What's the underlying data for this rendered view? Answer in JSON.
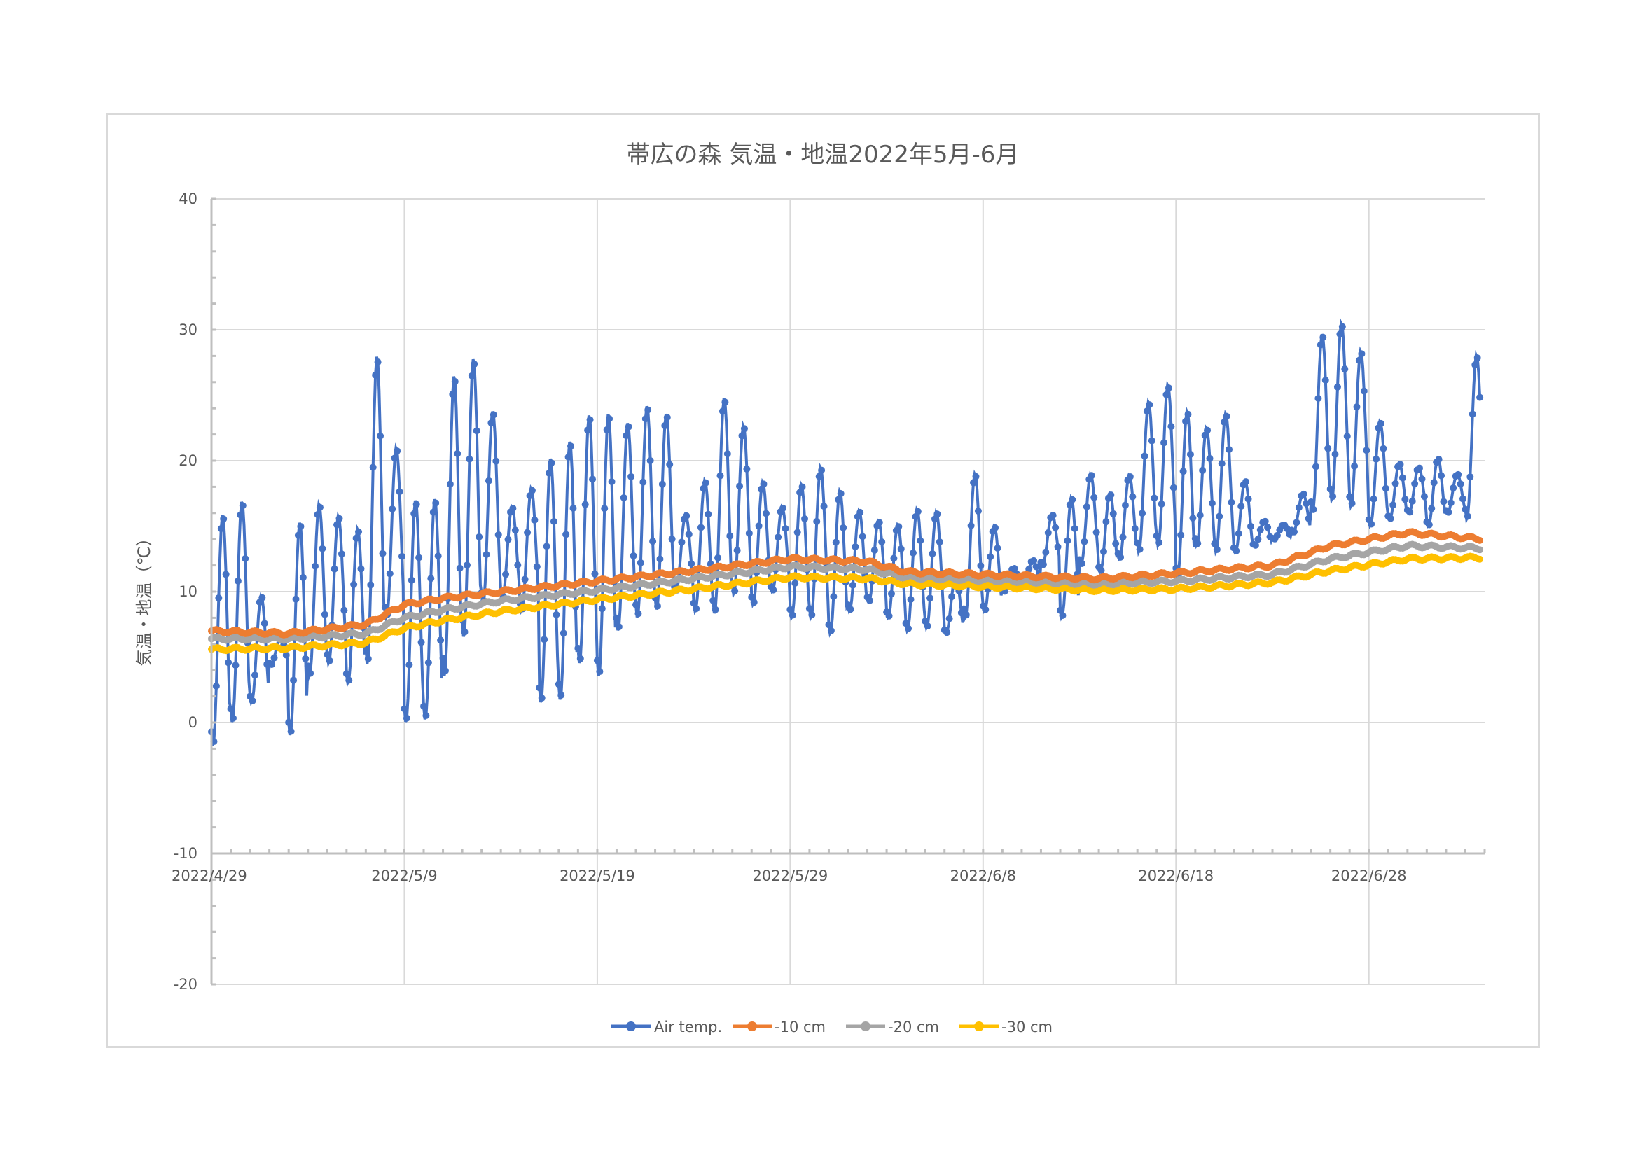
{
  "chart_data": {
    "type": "line",
    "title": "帯広の森 気温・地温2022年5月-6月",
    "ylabel": "気温・地温（℃）",
    "xlabel": "",
    "ylim": [
      -20,
      40
    ],
    "yticks": [
      "40",
      "30",
      "20",
      "10",
      "0",
      "-10",
      "-20"
    ],
    "x_axis_crosses_at": -10,
    "xlim": [
      "2022-04-29",
      "2022-07-04"
    ],
    "xticks": [
      {
        "date": "2022-04-29",
        "label": "2022/4/29"
      },
      {
        "date": "2022-05-09",
        "label": "2022/5/9"
      },
      {
        "date": "2022-05-19",
        "label": "2022/5/19"
      },
      {
        "date": "2022-05-29",
        "label": "2022/5/29"
      },
      {
        "date": "2022-06-08",
        "label": "2022/6/8"
      },
      {
        "date": "2022-06-18",
        "label": "2022/6/18"
      },
      {
        "date": "2022-06-28",
        "label": "2022/6/28"
      }
    ],
    "grid": true,
    "legend_position": "bottom",
    "series": [
      {
        "name": "Air temp.",
        "color": "#4472c4",
        "daily_max": [
          15.9,
          16.9,
          9.7,
          6.5,
          15.3,
          16.7,
          15.8,
          14.8,
          28.0,
          21.0,
          17.0,
          17.1,
          26.5,
          27.8,
          23.8,
          16.5,
          17.9,
          20.2,
          21.5,
          23.5,
          23.6,
          22.9,
          24.2,
          23.6,
          15.9,
          18.5,
          24.8,
          22.7,
          18.4,
          16.5,
          18.2,
          19.5,
          17.7,
          16.2,
          15.4,
          15.1,
          16.3,
          16.1,
          11.2,
          19.0,
          15.0,
          11.8,
          12.4,
          15.9,
          17.2,
          19.0,
          17.5,
          18.9,
          24.5,
          25.8,
          23.8,
          22.5,
          23.6,
          18.5,
          15.4,
          15.1,
          17.5,
          29.7,
          30.5,
          28.4,
          23.0,
          19.8,
          19.5,
          20.2,
          19.0,
          28.1,
          17.5
        ],
        "daily_min": [
          -1.8,
          0.0,
          1.5,
          4.4,
          -1.0,
          3.5,
          4.5,
          3.0,
          4.4,
          8.0,
          0.0,
          0.2,
          3.5,
          6.5,
          9.0,
          9.5,
          8.5,
          1.5,
          1.7,
          4.5,
          3.5,
          7.0,
          8.0,
          8.6,
          10.0,
          8.5,
          8.3,
          9.8,
          9.0,
          10.0,
          8.0,
          8.0,
          6.8,
          8.5,
          9.2,
          8.0,
          7.0,
          7.2,
          6.8,
          8.0,
          8.5,
          10.0,
          10.5,
          12.0,
          8.0,
          12.0,
          11.5,
          12.5,
          13.0,
          13.5,
          11.0,
          13.5,
          13.0,
          13.0,
          13.5,
          14.0,
          14.5,
          16.0,
          17.0,
          16.5,
          15.0,
          15.5,
          16.0,
          15.0,
          16.0,
          15.5,
          16.0
        ]
      },
      {
        "name": "-10 cm",
        "color": "#ed7d31",
        "points": [
          [
            0,
            7.0
          ],
          [
            4,
            6.8
          ],
          [
            8,
            7.5
          ],
          [
            10,
            9.0
          ],
          [
            12,
            9.5
          ],
          [
            15,
            10.0
          ],
          [
            20,
            10.8
          ],
          [
            25,
            11.6
          ],
          [
            30,
            12.5
          ],
          [
            34,
            12.3
          ],
          [
            36,
            11.5
          ],
          [
            40,
            11.3
          ],
          [
            46,
            11.0
          ],
          [
            50,
            11.4
          ],
          [
            55,
            12.0
          ],
          [
            58,
            13.5
          ],
          [
            62,
            14.5
          ],
          [
            66,
            14.0
          ],
          [
            69,
            14.5
          ],
          [
            72,
            16.2
          ],
          [
            75,
            16.0
          ],
          [
            78,
            15.8
          ],
          [
            81,
            16.0
          ]
        ]
      },
      {
        "name": "-20 cm",
        "color": "#a5a5a5",
        "points": [
          [
            0,
            6.4
          ],
          [
            4,
            6.4
          ],
          [
            8,
            6.8
          ],
          [
            10,
            8.0
          ],
          [
            12,
            8.6
          ],
          [
            15,
            9.3
          ],
          [
            20,
            10.1
          ],
          [
            25,
            11.0
          ],
          [
            30,
            11.9
          ],
          [
            34,
            11.7
          ],
          [
            36,
            11.1
          ],
          [
            40,
            10.9
          ],
          [
            46,
            10.6
          ],
          [
            50,
            10.8
          ],
          [
            55,
            11.3
          ],
          [
            58,
            12.5
          ],
          [
            62,
            13.5
          ],
          [
            66,
            13.3
          ],
          [
            69,
            13.6
          ],
          [
            72,
            15.1
          ],
          [
            75,
            15.1
          ],
          [
            78,
            15.0
          ],
          [
            81,
            15.0
          ]
        ]
      },
      {
        "name": "-30 cm",
        "color": "#ffc000",
        "points": [
          [
            0,
            5.6
          ],
          [
            4,
            5.7
          ],
          [
            8,
            6.1
          ],
          [
            10,
            7.2
          ],
          [
            12,
            7.8
          ],
          [
            15,
            8.5
          ],
          [
            20,
            9.4
          ],
          [
            25,
            10.2
          ],
          [
            30,
            11.1
          ],
          [
            34,
            11.0
          ],
          [
            36,
            10.6
          ],
          [
            40,
            10.4
          ],
          [
            46,
            10.1
          ],
          [
            50,
            10.2
          ],
          [
            55,
            10.7
          ],
          [
            58,
            11.6
          ],
          [
            62,
            12.5
          ],
          [
            66,
            12.6
          ],
          [
            69,
            12.8
          ],
          [
            72,
            13.9
          ],
          [
            75,
            13.9
          ],
          [
            78,
            13.9
          ],
          [
            81,
            13.9
          ]
        ]
      }
    ]
  }
}
